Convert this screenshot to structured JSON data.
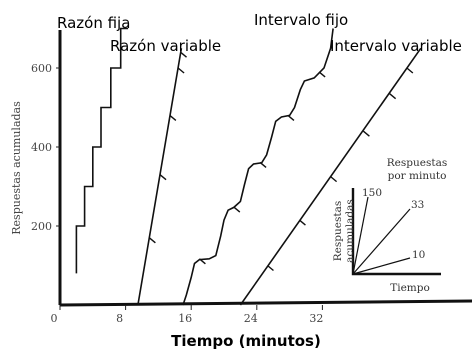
{
  "chart_data": {
    "type": "line",
    "title": "",
    "xlabel": "Tiempo (minutos)",
    "ylabel": "Respuestas acumuladas",
    "x_ticks": [
      0,
      8,
      16,
      24,
      32
    ],
    "y_ticks": [
      200,
      400,
      600
    ],
    "xlim": [
      0,
      42
    ],
    "ylim": [
      0,
      700
    ],
    "grid": false,
    "series": [
      {
        "name": "Razón fija",
        "points": [
          [
            2.0,
            80
          ],
          [
            2.0,
            200
          ],
          [
            3.0,
            200
          ],
          [
            3.0,
            300
          ],
          [
            4.0,
            300
          ],
          [
            4.0,
            400
          ],
          [
            5.0,
            400
          ],
          [
            5.0,
            500
          ],
          [
            6.2,
            500
          ],
          [
            6.2,
            600
          ],
          [
            7.4,
            600
          ],
          [
            7.4,
            700
          ],
          [
            8.3,
            700
          ]
        ]
      },
      {
        "name": "Razón variable",
        "points": [
          [
            9.5,
            0
          ],
          [
            14.8,
            650
          ]
        ],
        "marks": [
          [
            10.9,
            170
          ],
          [
            12.2,
            330
          ],
          [
            13.4,
            480
          ],
          [
            14.4,
            600
          ],
          [
            14.7,
            640
          ]
        ]
      },
      {
        "name": "Intervalo fijo",
        "points": [
          [
            15.0,
            0
          ],
          [
            15.4,
            25
          ],
          [
            16.0,
            70
          ],
          [
            16.4,
            105
          ],
          [
            17.0,
            115
          ],
          [
            18.2,
            117
          ],
          [
            19.0,
            125
          ],
          [
            19.6,
            175
          ],
          [
            20.0,
            215
          ],
          [
            20.5,
            240
          ],
          [
            21.2,
            247
          ],
          [
            22.0,
            262
          ],
          [
            22.5,
            305
          ],
          [
            23.0,
            345
          ],
          [
            23.6,
            357
          ],
          [
            24.6,
            360
          ],
          [
            25.2,
            380
          ],
          [
            25.8,
            425
          ],
          [
            26.3,
            465
          ],
          [
            27.0,
            476
          ],
          [
            28.0,
            480
          ],
          [
            28.6,
            500
          ],
          [
            29.3,
            545
          ],
          [
            29.8,
            567
          ],
          [
            31.0,
            575
          ],
          [
            32.2,
            600
          ],
          [
            33.0,
            650
          ],
          [
            33.3,
            700
          ]
        ],
        "marks": [
          [
            17.0,
            117
          ],
          [
            21.2,
            248
          ],
          [
            24.4,
            361
          ],
          [
            27.8,
            480
          ],
          [
            31.6,
            590
          ]
        ]
      },
      {
        "name": "Intervalo variable",
        "points": [
          [
            22.0,
            0
          ],
          [
            44.0,
            650
          ]
        ],
        "marks": [
          [
            25.3,
            100
          ],
          [
            29.2,
            215
          ],
          [
            33.0,
            325
          ],
          [
            37.0,
            440
          ],
          [
            40.2,
            535
          ],
          [
            42.3,
            600
          ]
        ]
      }
    ],
    "inset": {
      "ylabel": "Respuestas acumuladas",
      "xlabel": "Tiempo",
      "title": "Respuestas por minuto",
      "rates": [
        "150",
        "33",
        "10"
      ]
    }
  }
}
